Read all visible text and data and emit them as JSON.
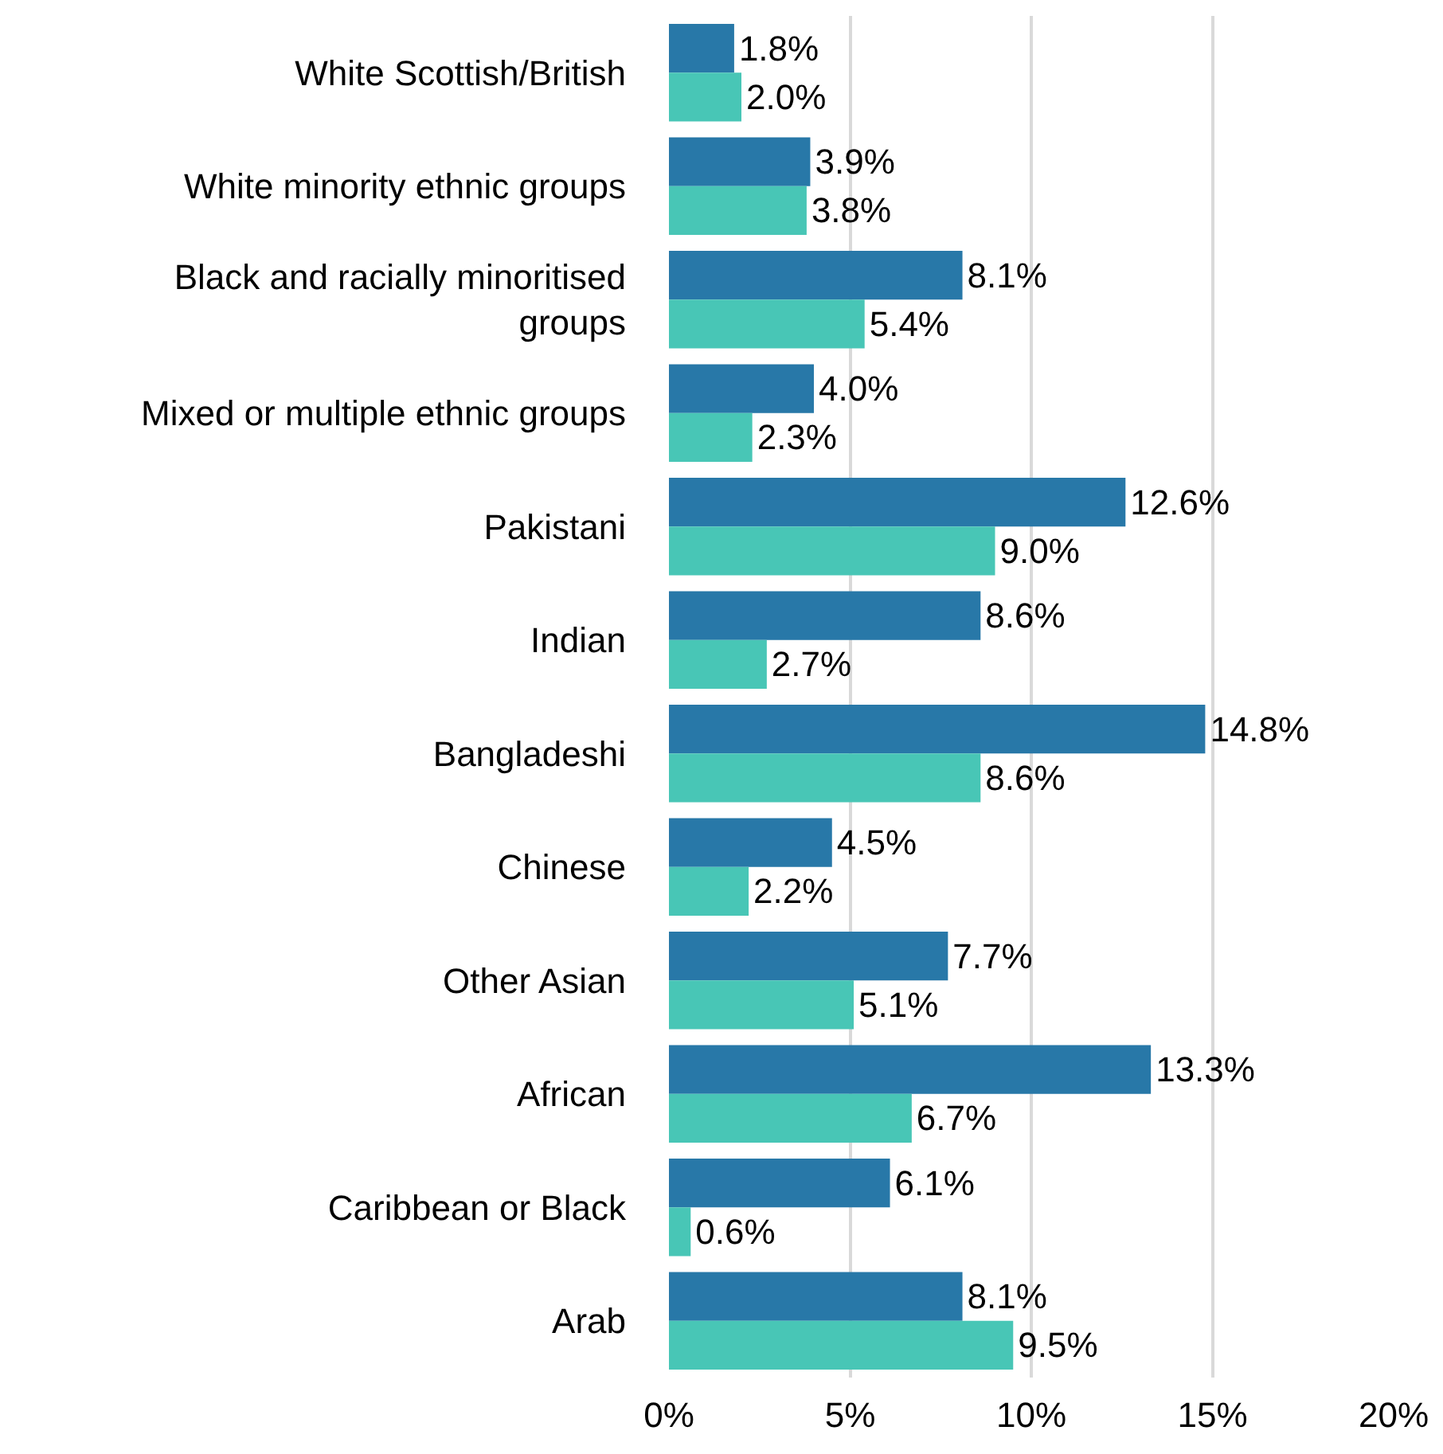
{
  "chart_data": {
    "type": "bar",
    "orientation": "horizontal",
    "categories": [
      "White Scottish/British",
      "White minority ethnic groups",
      "Black and racially minoritised groups",
      "Mixed or multiple ethnic groups",
      "Pakistani",
      "Indian",
      "Bangladeshi",
      "Chinese",
      "Other Asian",
      "African",
      "Caribbean or Black",
      "Arab"
    ],
    "series": [
      {
        "color": "#2878a8",
        "values": [
          1.8,
          3.9,
          8.1,
          4.0,
          12.6,
          8.6,
          14.8,
          4.5,
          7.7,
          13.3,
          6.1,
          8.1
        ],
        "value_labels": [
          "1.8%",
          "3.9%",
          "8.1%",
          "4.0%",
          "12.6%",
          "8.6%",
          "14.8%",
          "4.5%",
          "7.7%",
          "13.3%",
          "6.1%",
          "8.1%"
        ]
      },
      {
        "color": "#48c6b6",
        "values": [
          2.0,
          3.8,
          5.4,
          2.3,
          9.0,
          2.7,
          8.6,
          2.2,
          5.1,
          6.7,
          0.6,
          9.5
        ],
        "value_labels": [
          "2.0%",
          "3.8%",
          "5.4%",
          "2.3%",
          "9.0%",
          "2.7%",
          "8.6%",
          "2.2%",
          "5.1%",
          "6.7%",
          "0.6%",
          "9.5%"
        ]
      }
    ],
    "xlim": [
      0,
      20
    ],
    "xticks": [
      {
        "value": 0,
        "label": "0%"
      },
      {
        "value": 5,
        "label": "5%"
      },
      {
        "value": 10,
        "label": "10%"
      },
      {
        "value": 15,
        "label": "15%"
      },
      {
        "value": 20,
        "label": "20%"
      }
    ],
    "grid": "x"
  }
}
